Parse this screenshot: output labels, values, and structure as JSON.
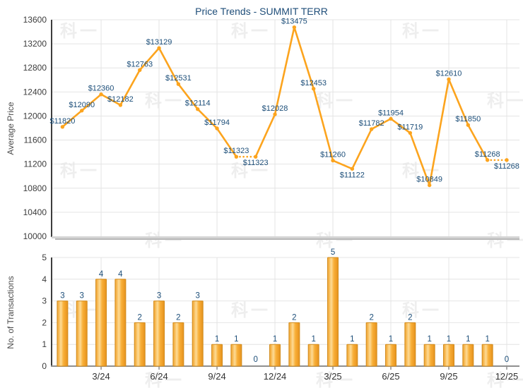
{
  "title": "Price Trends - SUMMIT TERR",
  "watermark": {
    "text": "科一"
  },
  "colors": {
    "line_orange": "#FCA41E",
    "bar_border": "#D28C1E",
    "bar_grad": [
      "#EFA32F",
      "#F8BE5C",
      "#FDDB96",
      "#F8AF38",
      "#EF9F29",
      "#E3921F"
    ],
    "value_label_navy": "#1C4E79",
    "title_navy": "#1F4E79",
    "tick_gray": "#3C3C3C",
    "xtick_gray": "#333333",
    "axis_dark": "#3D3D3D",
    "axis_bottom_gray": "#8F8F8F",
    "axis_shadow_light": "#D4D4D4",
    "axis_shadow_dark": "#B8B8B8",
    "grid": "#E4E4E4",
    "axis_title_gray": "#4D4D4D"
  },
  "chart_data": [
    {
      "type": "line",
      "title": "Price Trends - SUMMIT TERR",
      "ylabel": "Average Price",
      "ylim": [
        10000,
        13600
      ],
      "ytick_step": 400,
      "yticks": [
        13600,
        13200,
        12800,
        12400,
        12000,
        11600,
        11200,
        10800,
        10400,
        10000
      ],
      "grid": true,
      "legend": "none",
      "x": [
        "1/24",
        "2/24",
        "3/24",
        "4/24",
        "5/24",
        "6/24",
        "7/24",
        "8/24",
        "9/24",
        "10/24",
        "11/24",
        "12/24",
        "1/25",
        "2/25",
        "3/25",
        "4/25",
        "5/25",
        "6/25",
        "7/25",
        "8/25",
        "9/25",
        "10/25",
        "11/25",
        "12/25"
      ],
      "xtick_labels_shown": [],
      "values": [
        11820,
        12090,
        12360,
        12182,
        12763,
        13129,
        12531,
        12114,
        11794,
        11323,
        11323,
        12028,
        13475,
        12453,
        11260,
        11122,
        11782,
        11954,
        11719,
        10849,
        12610,
        11850,
        11268,
        11268
      ],
      "point_labels": [
        "$11820",
        "$12090",
        "$12360",
        "$12182",
        "$12763",
        "$13129",
        "$12531",
        "$12114",
        "$11794",
        "$11323",
        "$11323",
        "$12028",
        "$13475",
        "$12453",
        "$11260",
        "$11122",
        "$11782",
        "$11954",
        "$11719",
        "$10849",
        "$12610",
        "$11850",
        "$11268",
        "$11268"
      ],
      "label_placement": [
        "above",
        "above",
        "above",
        "above",
        "above",
        "above",
        "above",
        "above",
        "above",
        "above",
        "below",
        "above",
        "above",
        "above",
        "above",
        "below",
        "above",
        "above",
        "above",
        "above",
        "above",
        "above",
        "above",
        "below"
      ],
      "dashed_segments": [
        [
          9,
          10
        ],
        [
          22,
          23
        ]
      ]
    },
    {
      "type": "bar",
      "ylabel": "No. of Transactions",
      "ylim": [
        0,
        5
      ],
      "ytick_step": 1,
      "yticks": [
        5,
        4,
        3,
        2,
        1,
        0
      ],
      "grid": true,
      "legend": "none",
      "categories": [
        "1/24",
        "2/24",
        "3/24",
        "4/24",
        "5/24",
        "6/24",
        "7/24",
        "8/24",
        "9/24",
        "10/24",
        "11/24",
        "12/24",
        "1/25",
        "2/25",
        "3/25",
        "4/25",
        "5/25",
        "6/25",
        "7/25",
        "8/25",
        "9/25",
        "10/25",
        "11/25",
        "12/25"
      ],
      "values": [
        3,
        3,
        4,
        4,
        2,
        3,
        2,
        3,
        1,
        1,
        0,
        1,
        2,
        1,
        5,
        1,
        2,
        1,
        2,
        1,
        1,
        1,
        1,
        0
      ],
      "xtick_labels": [
        "3/24",
        "6/24",
        "9/24",
        "12/24",
        "3/25",
        "6/25",
        "9/25",
        "12/25"
      ]
    }
  ]
}
